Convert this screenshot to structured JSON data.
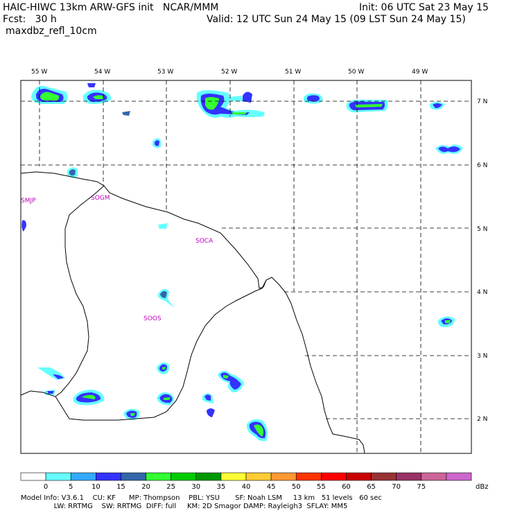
{
  "header": {
    "line1_left": "HAIC-HIWC 13km ARW-GFS init   NCAR/MMM",
    "line1_right": "Init: 06 UTC Sat 23 May 15",
    "line2_left": "Fcst:   30 h",
    "line2_right": "Valid: 12 UTC Sun 24 May 15 (09 LST Sun 24 May 15)",
    "line3_left": "maxdbz_refl_10cm"
  },
  "map": {
    "lon_labels": [
      "55 W",
      "54 W",
      "53 W",
      "52 W",
      "51 W",
      "50 W",
      "49 W"
    ],
    "lat_labels": [
      "7 N",
      "6 N",
      "5 N",
      "4 N",
      "3 N",
      "2 N"
    ],
    "stations": [
      "SMJP",
      "SOGM",
      "SOCA",
      "SOOS"
    ]
  },
  "colorbar": {
    "ticks": [
      "0",
      "5",
      "10",
      "15",
      "20",
      "25",
      "30",
      "35",
      "40",
      "45",
      "50",
      "55",
      "60",
      "65",
      "70",
      "75"
    ],
    "unit": "dBz",
    "colors": [
      "#ffffff",
      "#66ffff",
      "#33aaff",
      "#3333ff",
      "#3366aa",
      "#33ff33",
      "#00cc00",
      "#009900",
      "#ffff33",
      "#ffcc33",
      "#ff9933",
      "#ff3300",
      "#ff0000",
      "#cc0000",
      "#993333",
      "#993366",
      "#cc6699",
      "#cc66cc"
    ]
  },
  "footer": {
    "line1": "Model Info: V3.6.1    CU: KF      MP: Thompson    PBL: YSU       SF: Noah LSM     13 km   51 levels   60 sec",
    "line2": "               LW: RRTMG    SW: RRTMG  DIFF: full     KM: 2D Smagor DAMP: Rayleigh3  SFLAY: MM5"
  }
}
